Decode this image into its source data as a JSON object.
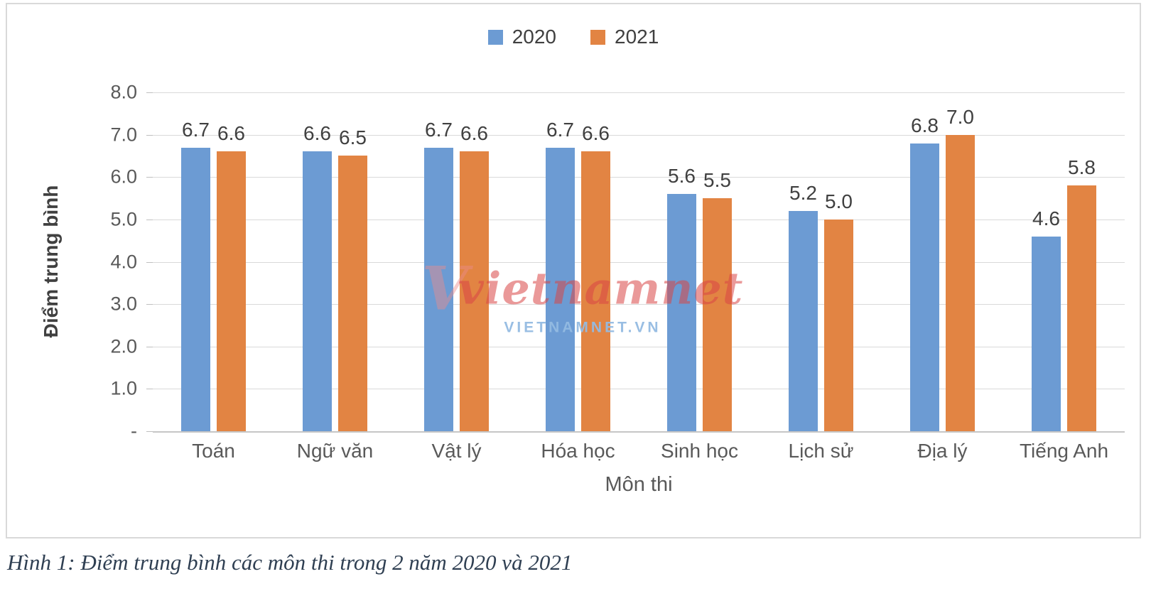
{
  "watermark": {
    "logo_text": "vietnamnet",
    "subtext": "VIETNAMNET.VN"
  },
  "caption": {
    "text": "Hình 1: Điểm trung bình các môn thi trong 2 năm 2020 và 2021"
  },
  "chart_data": {
    "type": "bar",
    "title": "",
    "categories": [
      "Toán",
      "Ngữ văn",
      "Vật lý",
      "Hóa học",
      "Sinh học",
      "Lịch sử",
      "Địa lý",
      "Tiếng Anh"
    ],
    "series": [
      {
        "name": "2020",
        "color": "#6C9BD3",
        "values": [
          6.7,
          6.6,
          6.7,
          6.7,
          5.6,
          5.2,
          6.8,
          4.6
        ],
        "labels": [
          "6.7",
          "6.6",
          "6.7",
          "6.7",
          "5.6",
          "5.2",
          "6.8",
          "4.6"
        ]
      },
      {
        "name": "2021",
        "color": "#E28443",
        "values": [
          6.6,
          6.5,
          6.6,
          6.6,
          5.5,
          5.0,
          7.0,
          5.8
        ],
        "labels": [
          "6.6",
          "6.5",
          "6.6",
          "6.6",
          "5.5",
          "5.0",
          "7.0",
          "5.8"
        ]
      }
    ],
    "xlabel": "Môn thi",
    "ylabel": "Điểm trung bình",
    "ylim": [
      0,
      8
    ],
    "yticks": [
      {
        "value": 8,
        "label": "8.0"
      },
      {
        "value": 7,
        "label": "7.0"
      },
      {
        "value": 6,
        "label": "6.0"
      },
      {
        "value": 5,
        "label": "5.0"
      },
      {
        "value": 4,
        "label": "4.0"
      },
      {
        "value": 3,
        "label": "3.0"
      },
      {
        "value": 2,
        "label": "2.0"
      },
      {
        "value": 1,
        "label": "1.0"
      },
      {
        "value": 0,
        "label": "-"
      }
    ],
    "grid": true,
    "legend_position": "top",
    "colors": {
      "gridline": "#D9D9D9",
      "axis_line": "#C6C6C6",
      "tick_label": "#595959",
      "data_label": "#404040",
      "axis_title": "#404040"
    }
  }
}
